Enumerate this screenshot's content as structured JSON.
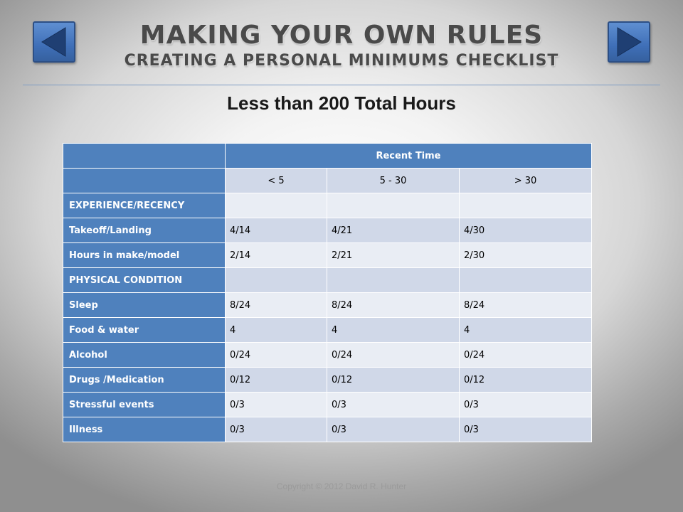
{
  "slide": {
    "title": "MAKING YOUR OWN RULES",
    "subtitle": "CREATING A PERSONAL MINIMUMS CHECKLIST",
    "heading": "Less than 200 Total Hours",
    "copyright": "Copyright © 2012 David R. Hunter"
  },
  "nav": {
    "prev_icon": "triangle-left-icon",
    "next_icon": "triangle-right-icon"
  },
  "table": {
    "group_header": "Recent Time",
    "columns": [
      "< 5",
      "5 - 30",
      "> 30"
    ],
    "rows": [
      {
        "label": "EXPERIENCE/RECENCY",
        "values": [
          "",
          "",
          ""
        ]
      },
      {
        "label": "Takeoff/Landing",
        "values": [
          "4/14",
          "4/21",
          "4/30"
        ]
      },
      {
        "label": "Hours in make/model",
        "values": [
          "2/14",
          "2/21",
          "2/30"
        ]
      },
      {
        "label": "PHYSICAL CONDITION",
        "values": [
          "",
          "",
          ""
        ]
      },
      {
        "label": "Sleep",
        "values": [
          "8/24",
          "8/24",
          "8/24"
        ]
      },
      {
        "label": "Food & water",
        "values": [
          "4",
          "4",
          "4"
        ]
      },
      {
        "label": "Alcohol",
        "values": [
          "0/24",
          "0/24",
          "0/24"
        ]
      },
      {
        "label": "Drugs /Medication",
        "values": [
          "0/12",
          "0/12",
          "0/12"
        ]
      },
      {
        "label": "Stressful events",
        "values": [
          "0/3",
          "0/3",
          "0/3"
        ]
      },
      {
        "label": "Illness",
        "values": [
          "0/3",
          "0/3",
          "0/3"
        ]
      }
    ]
  },
  "colors": {
    "accent": "#4f81bd",
    "row_light": "#e9edf4",
    "row_dark": "#d0d8e8"
  }
}
